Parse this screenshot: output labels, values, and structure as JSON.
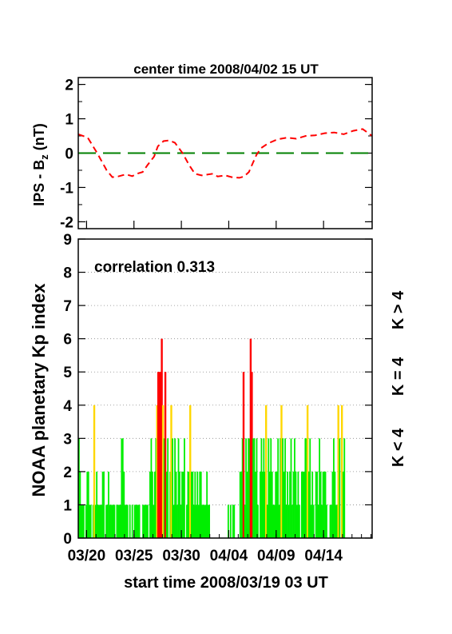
{
  "colors": {
    "bz_line": "#ff0000",
    "zero_line": "#008000",
    "kp_low": "#00ee00",
    "kp_mid": "#ffd700",
    "kp_high": "#ff0000",
    "axis": "#000000",
    "grid": "#888888"
  },
  "chart_data": [
    {
      "type": "line",
      "title": "center time 2008/04/02 15 UT",
      "ylabel_main": "IPS - B",
      "ylabel_sub": "z",
      "ylabel_unit": " (nT)",
      "ylim": [
        -2.2,
        2.2
      ],
      "yticks": [
        -2,
        -1,
        0,
        1,
        2
      ],
      "xlim": [
        0,
        31
      ],
      "zero_line": 0,
      "series": [
        {
          "style": "dashed",
          "x": [
            0.0,
            1.0,
            2.0,
            3.0,
            3.6,
            4.2,
            5.0,
            5.7,
            6.2,
            6.8,
            7.3,
            8.0,
            8.4,
            9.0,
            9.6,
            10.2,
            11.0,
            11.7,
            12.3,
            13.0,
            14.2,
            14.7,
            15.5,
            16.2,
            17.0,
            17.5,
            18.0,
            18.4,
            18.8,
            19.3,
            20.0,
            21.0,
            22.0,
            23.0,
            24.0,
            25.0,
            26.0,
            27.0,
            28.0,
            29.0,
            30.0,
            31.0
          ],
          "y": [
            0.55,
            0.45,
            0.0,
            -0.5,
            -0.7,
            -0.68,
            -0.62,
            -0.67,
            -0.6,
            -0.55,
            -0.35,
            -0.1,
            0.2,
            0.35,
            0.37,
            0.3,
            0.0,
            -0.35,
            -0.6,
            -0.65,
            -0.6,
            -0.68,
            -0.65,
            -0.7,
            -0.72,
            -0.68,
            -0.55,
            -0.3,
            -0.05,
            0.15,
            0.28,
            0.4,
            0.45,
            0.42,
            0.5,
            0.52,
            0.58,
            0.6,
            0.55,
            0.65,
            0.7,
            0.5
          ]
        }
      ]
    },
    {
      "type": "bar",
      "ylabel": "NOAA planetary Kp index",
      "annotation": "correlation 0.313",
      "ylim": [
        0,
        9
      ],
      "yticks": [
        0,
        1,
        2,
        3,
        4,
        5,
        6,
        7,
        8,
        9
      ],
      "xlim": [
        0,
        31
      ],
      "grid": true,
      "xlabel": "start time 2008/03/19 03 UT",
      "xtick_labels": [
        "03/20",
        "03/25",
        "03/30",
        "04/04",
        "04/09",
        "04/14"
      ],
      "xtick_days": [
        0.875,
        5.875,
        10.875,
        15.875,
        20.875,
        25.875
      ],
      "legend": [
        "K < 4",
        "K = 4",
        "K > 4"
      ],
      "bar_width_days": 0.125,
      "kp": [
        3,
        2,
        1,
        1,
        1,
        0,
        1,
        2,
        2,
        1,
        1,
        0,
        1,
        4,
        1,
        2,
        1,
        1,
        1,
        1,
        2,
        2,
        0,
        1,
        1,
        2,
        1,
        1,
        1,
        1,
        1,
        0,
        1,
        1,
        1,
        1,
        3,
        3,
        2,
        1,
        1,
        1,
        0,
        1,
        0,
        1,
        0,
        1,
        1,
        1,
        1,
        1,
        0,
        0,
        1,
        1,
        1,
        1,
        1,
        0,
        2,
        3,
        2,
        1,
        2,
        3,
        4,
        5,
        5,
        5,
        6,
        4,
        3,
        5,
        2,
        3,
        0,
        2,
        4,
        3,
        1,
        3,
        2,
        1,
        3,
        2,
        1,
        2,
        2,
        3,
        0,
        1,
        2,
        2,
        4,
        2,
        2,
        1,
        2,
        1,
        2,
        1,
        2,
        2,
        1,
        1,
        1,
        1,
        2,
        1,
        1,
        0,
        0,
        0,
        0,
        0,
        0,
        0,
        0,
        0,
        0,
        0,
        0,
        0,
        0,
        0,
        1,
        0,
        1,
        0,
        1,
        1,
        0,
        0,
        0,
        0,
        2,
        2,
        3,
        5,
        1,
        3,
        2,
        3,
        3,
        6,
        5,
        3,
        3,
        2,
        3,
        1,
        0,
        2,
        3,
        2,
        3,
        2,
        4,
        1,
        3,
        2,
        3,
        2,
        1,
        1,
        2,
        2,
        3,
        1,
        3,
        4,
        3,
        2,
        3,
        1,
        2,
        1,
        2,
        3,
        1,
        2,
        3,
        2,
        1,
        2,
        1,
        0,
        2,
        2,
        2,
        3,
        3,
        4,
        2,
        3,
        1,
        2,
        1,
        0,
        2,
        2,
        1,
        3,
        2,
        1,
        2,
        2,
        2,
        1,
        0,
        0,
        1,
        1,
        2,
        3,
        2,
        1,
        1,
        4,
        3,
        0,
        4,
        2,
        3
      ]
    }
  ]
}
